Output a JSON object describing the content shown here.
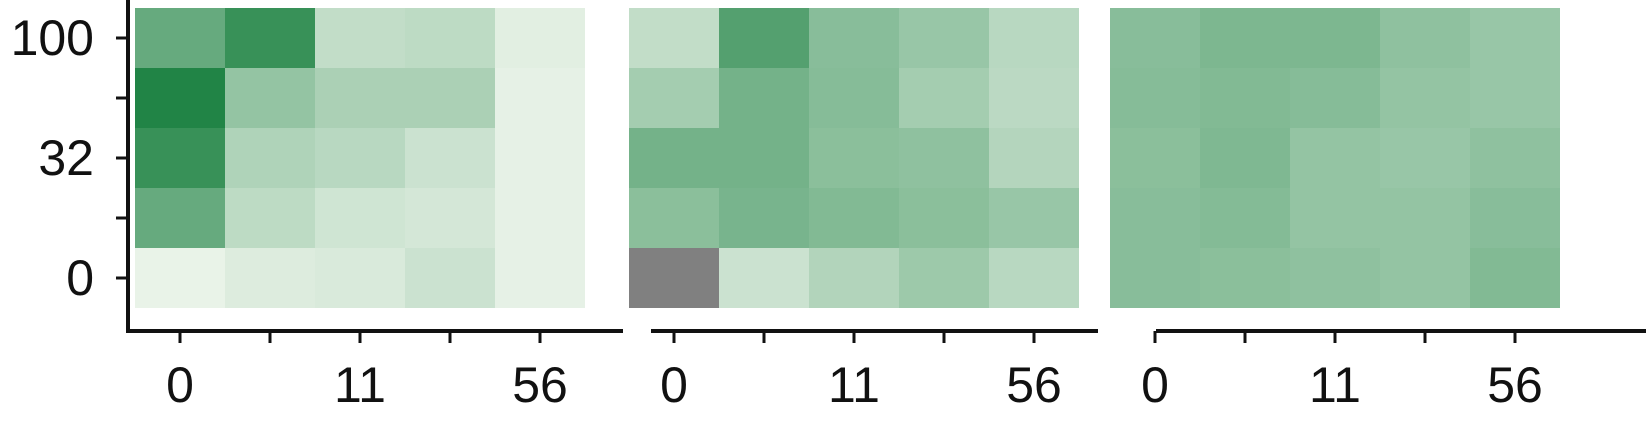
{
  "chart_data": [
    {
      "type": "heatmap",
      "title": "",
      "xlabel": "",
      "ylabel": "",
      "x_tick_labels": [
        "0",
        "11",
        "56"
      ],
      "y_tick_labels": [
        "0",
        "32",
        "100"
      ],
      "grid": false,
      "legend": "none",
      "rows_top_to_bottom": [
        [
          0.62,
          0.82,
          0.22,
          0.24,
          0.08
        ],
        [
          0.92,
          0.42,
          0.32,
          0.32,
          0.06
        ],
        [
          0.82,
          0.3,
          0.26,
          0.18,
          0.06
        ],
        [
          0.62,
          0.24,
          0.16,
          0.14,
          0.06
        ],
        [
          0.05,
          0.1,
          0.12,
          0.18,
          0.06
        ]
      ]
    },
    {
      "type": "heatmap",
      "title": "",
      "xlabel": "",
      "ylabel": "",
      "x_tick_labels": [
        "0",
        "11",
        "56"
      ],
      "grid": false,
      "legend": "none",
      "missing_color": "#808080",
      "rows_top_to_bottom": [
        [
          0.22,
          0.7,
          0.47,
          0.4,
          0.26
        ],
        [
          0.35,
          0.56,
          0.48,
          0.35,
          0.25
        ],
        [
          0.56,
          0.56,
          0.46,
          0.44,
          0.28
        ],
        [
          0.46,
          0.54,
          0.5,
          0.46,
          0.4
        ],
        [
          null,
          0.18,
          0.29,
          0.38,
          0.26
        ]
      ]
    },
    {
      "type": "heatmap",
      "title": "",
      "xlabel": "",
      "ylabel": "",
      "x_tick_labels": [
        "0",
        "11",
        "56"
      ],
      "grid": false,
      "legend": "none",
      "rows_top_to_bottom": [
        [
          0.47,
          0.52,
          0.52,
          0.44,
          0.4
        ],
        [
          0.48,
          0.5,
          0.48,
          0.42,
          0.4
        ],
        [
          0.46,
          0.51,
          0.42,
          0.4,
          0.44
        ],
        [
          0.47,
          0.49,
          0.42,
          0.42,
          0.47
        ],
        [
          0.47,
          0.46,
          0.44,
          0.42,
          0.5
        ]
      ]
    }
  ],
  "colors": {
    "low": "#f4f9f1",
    "high": "#0f7a37",
    "missing": "#808080",
    "axis": "#111111"
  }
}
